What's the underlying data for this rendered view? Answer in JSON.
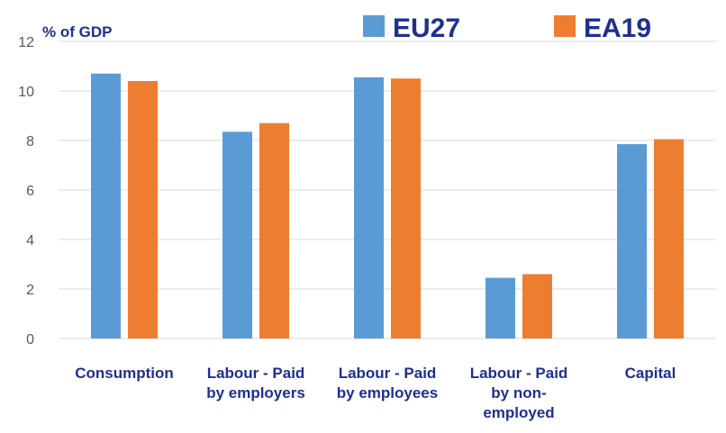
{
  "chart_data": {
    "type": "bar",
    "ylabel": "% of GDP",
    "ylim": [
      0,
      12
    ],
    "yticks": [
      0,
      2,
      4,
      6,
      8,
      10,
      12
    ],
    "grid": true,
    "legend_position": "top",
    "categories": [
      [
        "Consumption"
      ],
      [
        "Labour - Paid",
        "by employers"
      ],
      [
        "Labour - Paid",
        "by employees"
      ],
      [
        "Labour - Paid",
        "by non-",
        "employed"
      ],
      [
        "Capital"
      ]
    ],
    "series": [
      {
        "name": "EU27",
        "color": "#5b9bd5",
        "values": [
          10.7,
          8.35,
          10.55,
          2.45,
          7.85
        ]
      },
      {
        "name": "EA19",
        "color": "#ed7d31",
        "values": [
          10.4,
          8.7,
          10.5,
          2.6,
          8.05
        ]
      }
    ]
  }
}
